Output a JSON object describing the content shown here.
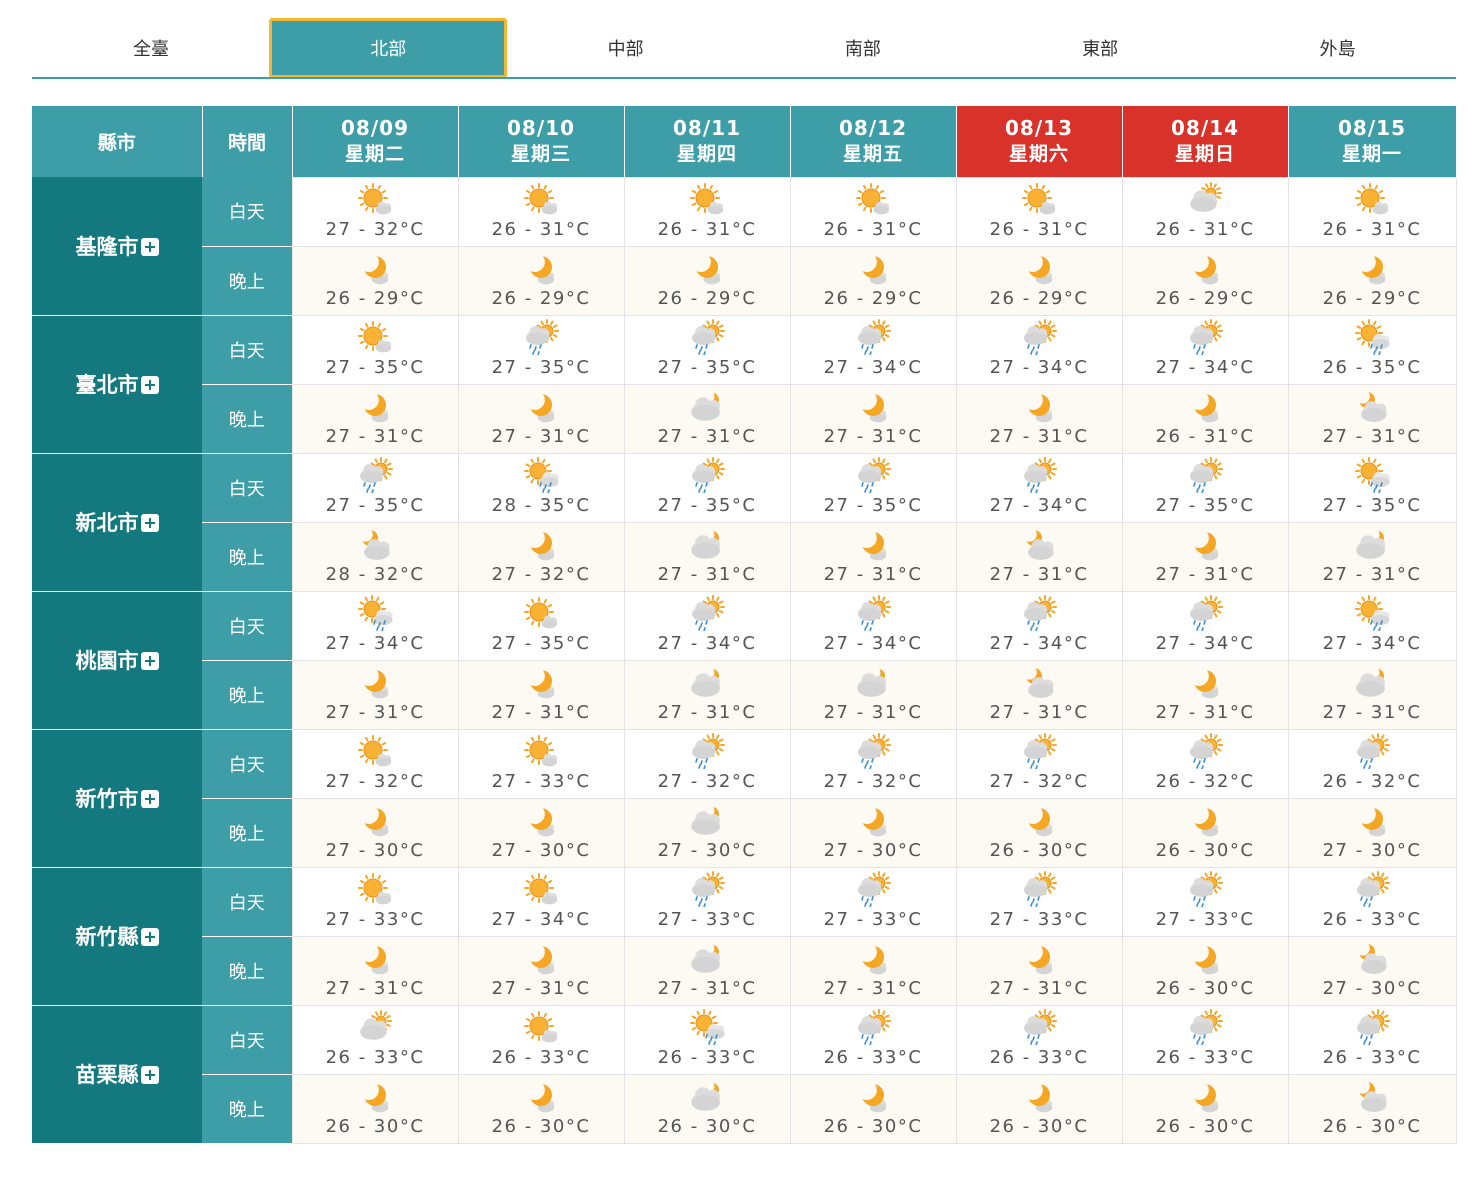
{
  "tabs": [
    {
      "label": "全臺",
      "active": false
    },
    {
      "label": "北部",
      "active": true
    },
    {
      "label": "中部",
      "active": false
    },
    {
      "label": "南部",
      "active": false
    },
    {
      "label": "東部",
      "active": false
    },
    {
      "label": "外島",
      "active": false
    }
  ],
  "header": {
    "city_label": "縣市",
    "time_label": "時間"
  },
  "day_label": "白天",
  "night_label": "晚上",
  "dates": [
    {
      "date": "08/09",
      "weekday": "星期二",
      "weekend": false
    },
    {
      "date": "08/10",
      "weekday": "星期三",
      "weekend": false
    },
    {
      "date": "08/11",
      "weekday": "星期四",
      "weekend": false
    },
    {
      "date": "08/12",
      "weekday": "星期五",
      "weekend": false
    },
    {
      "date": "08/13",
      "weekday": "星期六",
      "weekend": true
    },
    {
      "date": "08/14",
      "weekday": "星期日",
      "weekend": true
    },
    {
      "date": "08/15",
      "weekday": "星期一",
      "weekend": false
    }
  ],
  "colors": {
    "primary": "#3d9ea8",
    "city": "#13797f",
    "weekend": "#d9322a",
    "active_border": "#f5b731"
  },
  "cities": [
    {
      "name": "基隆市",
      "day": [
        [
          "sunny",
          "27 - 32°C"
        ],
        [
          "sunny",
          "26 - 31°C"
        ],
        [
          "sunny",
          "26 - 31°C"
        ],
        [
          "sunny",
          "26 - 31°C"
        ],
        [
          "sunny",
          "26 - 31°C"
        ],
        [
          "cloudy",
          "26 - 31°C"
        ],
        [
          "sunny",
          "26 - 31°C"
        ]
      ],
      "night": [
        [
          "moon",
          "26 - 29°C"
        ],
        [
          "moon",
          "26 - 29°C"
        ],
        [
          "moon",
          "26 - 29°C"
        ],
        [
          "moon",
          "26 - 29°C"
        ],
        [
          "moon",
          "26 - 29°C"
        ],
        [
          "moon",
          "26 - 29°C"
        ],
        [
          "moon",
          "26 - 29°C"
        ]
      ]
    },
    {
      "name": "臺北市",
      "day": [
        [
          "sunny",
          "27 - 35°C"
        ],
        [
          "cloud-rain",
          "27 - 35°C"
        ],
        [
          "cloud-rain",
          "27 - 35°C"
        ],
        [
          "cloud-rain",
          "27 - 34°C"
        ],
        [
          "cloud-rain",
          "27 - 34°C"
        ],
        [
          "cloud-rain",
          "27 - 34°C"
        ],
        [
          "sun-rain",
          "26 - 35°C"
        ]
      ],
      "night": [
        [
          "moon",
          "27 - 31°C"
        ],
        [
          "moon",
          "27 - 31°C"
        ],
        [
          "moon-cloud",
          "27 - 31°C"
        ],
        [
          "moon",
          "27 - 31°C"
        ],
        [
          "moon",
          "27 - 31°C"
        ],
        [
          "moon",
          "26 - 31°C"
        ],
        [
          "moon-cloud-small",
          "27 - 31°C"
        ]
      ]
    },
    {
      "name": "新北市",
      "day": [
        [
          "cloud-rain",
          "27 - 35°C"
        ],
        [
          "sun-rain",
          "28 - 35°C"
        ],
        [
          "cloud-rain",
          "27 - 35°C"
        ],
        [
          "cloud-rain",
          "27 - 35°C"
        ],
        [
          "cloud-rain",
          "27 - 34°C"
        ],
        [
          "cloud-rain",
          "27 - 35°C"
        ],
        [
          "sun-rain",
          "27 - 35°C"
        ]
      ],
      "night": [
        [
          "moon-cloud-small",
          "28 - 32°C"
        ],
        [
          "moon",
          "27 - 32°C"
        ],
        [
          "moon-cloud",
          "27 - 31°C"
        ],
        [
          "moon",
          "27 - 31°C"
        ],
        [
          "moon-cloud-small",
          "27 - 31°C"
        ],
        [
          "moon",
          "27 - 31°C"
        ],
        [
          "moon-cloud",
          "27 - 31°C"
        ]
      ]
    },
    {
      "name": "桃園市",
      "day": [
        [
          "sun-rain",
          "27 - 34°C"
        ],
        [
          "sunny",
          "27 - 35°C"
        ],
        [
          "cloud-rain",
          "27 - 34°C"
        ],
        [
          "cloud-rain",
          "27 - 34°C"
        ],
        [
          "cloud-rain",
          "27 - 34°C"
        ],
        [
          "cloud-rain",
          "27 - 34°C"
        ],
        [
          "sun-rain",
          "27 - 34°C"
        ]
      ],
      "night": [
        [
          "moon",
          "27 - 31°C"
        ],
        [
          "moon",
          "27 - 31°C"
        ],
        [
          "moon-cloud",
          "27 - 31°C"
        ],
        [
          "moon-cloud",
          "27 - 31°C"
        ],
        [
          "moon-cloud-small",
          "27 - 31°C"
        ],
        [
          "moon",
          "27 - 31°C"
        ],
        [
          "moon-cloud",
          "27 - 31°C"
        ]
      ]
    },
    {
      "name": "新竹市",
      "day": [
        [
          "sunny",
          "27 - 32°C"
        ],
        [
          "sunny",
          "27 - 33°C"
        ],
        [
          "cloud-rain",
          "27 - 32°C"
        ],
        [
          "cloud-rain",
          "27 - 32°C"
        ],
        [
          "cloud-rain",
          "27 - 32°C"
        ],
        [
          "cloud-rain",
          "26 - 32°C"
        ],
        [
          "cloud-rain",
          "26 - 32°C"
        ]
      ],
      "night": [
        [
          "moon",
          "27 - 30°C"
        ],
        [
          "moon",
          "27 - 30°C"
        ],
        [
          "moon-cloud",
          "27 - 30°C"
        ],
        [
          "moon",
          "27 - 30°C"
        ],
        [
          "moon",
          "26 - 30°C"
        ],
        [
          "moon",
          "26 - 30°C"
        ],
        [
          "moon",
          "27 - 30°C"
        ]
      ]
    },
    {
      "name": "新竹縣",
      "day": [
        [
          "sunny",
          "27 - 33°C"
        ],
        [
          "sunny",
          "27 - 34°C"
        ],
        [
          "cloud-rain",
          "27 - 33°C"
        ],
        [
          "cloud-rain",
          "27 - 33°C"
        ],
        [
          "cloud-rain",
          "27 - 33°C"
        ],
        [
          "cloud-rain",
          "27 - 33°C"
        ],
        [
          "cloud-rain",
          "26 - 33°C"
        ]
      ],
      "night": [
        [
          "moon",
          "27 - 31°C"
        ],
        [
          "moon",
          "27 - 31°C"
        ],
        [
          "moon-cloud",
          "27 - 31°C"
        ],
        [
          "moon",
          "27 - 31°C"
        ],
        [
          "moon",
          "27 - 31°C"
        ],
        [
          "moon",
          "26 - 30°C"
        ],
        [
          "moon-cloud-small",
          "27 - 30°C"
        ]
      ]
    },
    {
      "name": "苗栗縣",
      "day": [
        [
          "cloudy",
          "26 - 33°C"
        ],
        [
          "sunny",
          "26 - 33°C"
        ],
        [
          "sun-rain",
          "26 - 33°C"
        ],
        [
          "cloud-rain",
          "26 - 33°C"
        ],
        [
          "cloud-rain",
          "26 - 33°C"
        ],
        [
          "cloud-rain",
          "26 - 33°C"
        ],
        [
          "cloud-rain",
          "26 - 33°C"
        ]
      ],
      "night": [
        [
          "moon",
          "26 - 30°C"
        ],
        [
          "moon",
          "26 - 30°C"
        ],
        [
          "moon-cloud",
          "26 - 30°C"
        ],
        [
          "moon",
          "26 - 30°C"
        ],
        [
          "moon",
          "26 - 30°C"
        ],
        [
          "moon",
          "26 - 30°C"
        ],
        [
          "moon-cloud-small",
          "26 - 30°C"
        ]
      ]
    }
  ]
}
